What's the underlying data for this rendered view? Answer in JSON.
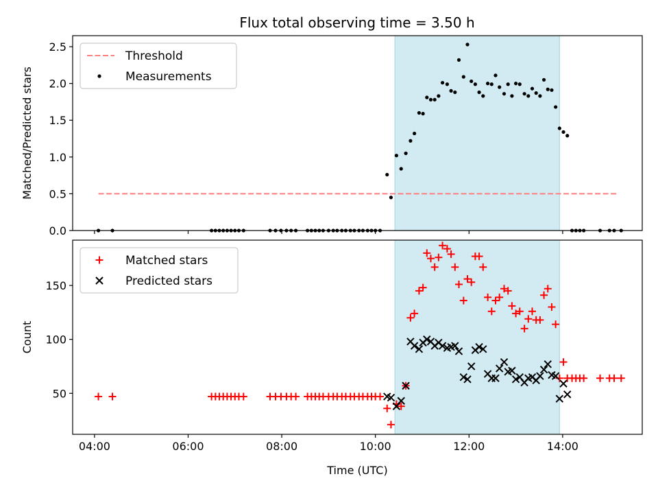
{
  "chart_data": [
    {
      "type": "scatter",
      "title": "Flux total observing time = 3.50 h",
      "xlabel": "",
      "ylabel": "Matched/Predicted stars",
      "xlim": [
        "03:32",
        "15:42"
      ],
      "ylim": [
        0,
        2.65
      ],
      "yticks": [
        "0.0",
        "0.5",
        "1.0",
        "1.5",
        "2.0",
        "2.5"
      ],
      "xticks": [
        "04:00",
        "06:00",
        "08:00",
        "10:00",
        "12:00",
        "14:00"
      ],
      "grid": false,
      "legend": "top-left",
      "shaded_region": {
        "start": "10:25",
        "end": "13:56",
        "color": "#add8e6"
      },
      "series": [
        {
          "name": "Threshold",
          "kind": "line",
          "color": "#ff7f7f",
          "dash": true,
          "points": [
            [
              "04:05",
              0.5
            ],
            [
              "15:10",
              0.5
            ]
          ]
        },
        {
          "name": "Measurements",
          "kind": "scatter",
          "color": "#000000",
          "points": [
            [
              "04:05",
              0.0
            ],
            [
              "04:23",
              0.0
            ],
            [
              "06:30",
              0.0
            ],
            [
              "06:35",
              0.0
            ],
            [
              "06:40",
              0.0
            ],
            [
              "06:45",
              0.0
            ],
            [
              "06:50",
              0.0
            ],
            [
              "06:55",
              0.0
            ],
            [
              "07:00",
              0.0
            ],
            [
              "07:05",
              0.0
            ],
            [
              "07:11",
              0.0
            ],
            [
              "07:45",
              0.0
            ],
            [
              "07:52",
              0.0
            ],
            [
              "07:59",
              0.0
            ],
            [
              "08:06",
              0.0
            ],
            [
              "08:12",
              0.0
            ],
            [
              "08:18",
              0.0
            ],
            [
              "08:33",
              0.0
            ],
            [
              "08:38",
              0.0
            ],
            [
              "08:43",
              0.0
            ],
            [
              "08:48",
              0.0
            ],
            [
              "08:53",
              0.0
            ],
            [
              "09:00",
              0.0
            ],
            [
              "09:06",
              0.0
            ],
            [
              "09:11",
              0.0
            ],
            [
              "09:17",
              0.0
            ],
            [
              "09:22",
              0.0
            ],
            [
              "09:28",
              0.0
            ],
            [
              "09:33",
              0.0
            ],
            [
              "09:39",
              0.0
            ],
            [
              "09:44",
              0.0
            ],
            [
              "09:50",
              0.0
            ],
            [
              "09:55",
              0.0
            ],
            [
              "10:00",
              0.0
            ],
            [
              "10:06",
              0.0
            ],
            [
              "10:15",
              0.76
            ],
            [
              "10:20",
              0.45
            ],
            [
              "10:27",
              1.02
            ],
            [
              "10:33",
              0.84
            ],
            [
              "10:39",
              1.05
            ],
            [
              "10:45",
              1.22
            ],
            [
              "10:50",
              1.32
            ],
            [
              "10:56",
              1.6
            ],
            [
              "11:01",
              1.59
            ],
            [
              "11:06",
              1.81
            ],
            [
              "11:11",
              1.78
            ],
            [
              "11:16",
              1.78
            ],
            [
              "11:21",
              1.83
            ],
            [
              "11:26",
              2.01
            ],
            [
              "11:32",
              1.99
            ],
            [
              "11:37",
              1.9
            ],
            [
              "11:42",
              1.88
            ],
            [
              "11:47",
              2.32
            ],
            [
              "11:53",
              2.09
            ],
            [
              "11:58",
              2.53
            ],
            [
              "12:03",
              2.03
            ],
            [
              "12:08",
              1.99
            ],
            [
              "12:13",
              1.88
            ],
            [
              "12:18",
              1.83
            ],
            [
              "12:24",
              2.0
            ],
            [
              "12:29",
              1.99
            ],
            [
              "12:34",
              2.11
            ],
            [
              "12:39",
              1.95
            ],
            [
              "12:45",
              1.86
            ],
            [
              "12:50",
              1.99
            ],
            [
              "12:55",
              1.83
            ],
            [
              "13:00",
              2.0
            ],
            [
              "13:05",
              1.99
            ],
            [
              "13:11",
              1.86
            ],
            [
              "13:16",
              1.83
            ],
            [
              "13:21",
              1.93
            ],
            [
              "13:26",
              1.87
            ],
            [
              "13:31",
              1.83
            ],
            [
              "13:36",
              2.05
            ],
            [
              "13:41",
              1.92
            ],
            [
              "13:46",
              1.91
            ],
            [
              "13:51",
              1.68
            ],
            [
              "13:56",
              1.39
            ],
            [
              "14:01",
              1.34
            ],
            [
              "14:06",
              1.29
            ],
            [
              "14:12",
              0.0
            ],
            [
              "14:17",
              0.0
            ],
            [
              "14:22",
              0.0
            ],
            [
              "14:27",
              0.0
            ],
            [
              "14:48",
              0.0
            ],
            [
              "15:00",
              0.0
            ],
            [
              "15:06",
              0.0
            ],
            [
              "15:15",
              0.0
            ]
          ]
        }
      ]
    },
    {
      "type": "scatter",
      "title": "",
      "xlabel": "Time (UTC)",
      "ylabel": "Count",
      "xlim": [
        "03:32",
        "15:42"
      ],
      "ylim": [
        12,
        192
      ],
      "yticks": [
        "50",
        "100",
        "150"
      ],
      "xticks": [
        "04:00",
        "06:00",
        "08:00",
        "10:00",
        "12:00",
        "14:00"
      ],
      "grid": false,
      "legend": "top-left",
      "shaded_region": {
        "start": "10:25",
        "end": "13:56",
        "color": "#add8e6"
      },
      "series": [
        {
          "name": "Matched stars",
          "kind": "plus",
          "color": "#ff0000",
          "points": [
            [
              "04:05",
              47
            ],
            [
              "04:23",
              47
            ],
            [
              "06:30",
              47
            ],
            [
              "06:35",
              47
            ],
            [
              "06:40",
              47
            ],
            [
              "06:45",
              47
            ],
            [
              "06:50",
              47
            ],
            [
              "06:55",
              47
            ],
            [
              "07:00",
              47
            ],
            [
              "07:05",
              47
            ],
            [
              "07:11",
              47
            ],
            [
              "07:45",
              47
            ],
            [
              "07:52",
              47
            ],
            [
              "07:59",
              47
            ],
            [
              "08:06",
              47
            ],
            [
              "08:12",
              47
            ],
            [
              "08:18",
              47
            ],
            [
              "08:33",
              47
            ],
            [
              "08:38",
              47
            ],
            [
              "08:43",
              47
            ],
            [
              "08:48",
              47
            ],
            [
              "08:53",
              47
            ],
            [
              "09:00",
              47
            ],
            [
              "09:06",
              47
            ],
            [
              "09:11",
              47
            ],
            [
              "09:17",
              47
            ],
            [
              "09:22",
              47
            ],
            [
              "09:28",
              47
            ],
            [
              "09:33",
              47
            ],
            [
              "09:39",
              47
            ],
            [
              "09:44",
              47
            ],
            [
              "09:50",
              47
            ],
            [
              "09:55",
              47
            ],
            [
              "10:00",
              47
            ],
            [
              "10:06",
              47
            ],
            [
              "10:15",
              36
            ],
            [
              "10:20",
              21
            ],
            [
              "10:27",
              40
            ],
            [
              "10:33",
              38
            ],
            [
              "10:39",
              57
            ],
            [
              "10:45",
              120
            ],
            [
              "10:50",
              124
            ],
            [
              "10:56",
              145
            ],
            [
              "11:01",
              148
            ],
            [
              "11:06",
              180
            ],
            [
              "11:11",
              175
            ],
            [
              "11:16",
              167
            ],
            [
              "11:21",
              176
            ],
            [
              "11:26",
              187
            ],
            [
              "11:32",
              184
            ],
            [
              "11:37",
              179
            ],
            [
              "11:42",
              167
            ],
            [
              "11:47",
              151
            ],
            [
              "11:53",
              136
            ],
            [
              "11:58",
              156
            ],
            [
              "12:03",
              153
            ],
            [
              "12:08",
              177
            ],
            [
              "12:13",
              177
            ],
            [
              "12:18",
              167
            ],
            [
              "12:24",
              139
            ],
            [
              "12:29",
              126
            ],
            [
              "12:34",
              136
            ],
            [
              "12:39",
              139
            ],
            [
              "12:45",
              147
            ],
            [
              "12:50",
              145
            ],
            [
              "12:55",
              131
            ],
            [
              "13:00",
              124
            ],
            [
              "13:05",
              126
            ],
            [
              "13:11",
              110
            ],
            [
              "13:16",
              119
            ],
            [
              "13:21",
              126
            ],
            [
              "13:26",
              118
            ],
            [
              "13:31",
              118
            ],
            [
              "13:36",
              141
            ],
            [
              "13:41",
              147
            ],
            [
              "13:46",
              130
            ],
            [
              "13:51",
              114
            ],
            [
              "13:56",
              64
            ],
            [
              "14:01",
              79
            ],
            [
              "14:06",
              64
            ],
            [
              "14:12",
              64
            ],
            [
              "14:17",
              64
            ],
            [
              "14:22",
              64
            ],
            [
              "14:27",
              64
            ],
            [
              "14:48",
              64
            ],
            [
              "15:00",
              64
            ],
            [
              "15:06",
              64
            ],
            [
              "15:15",
              64
            ]
          ]
        },
        {
          "name": "Predicted stars",
          "kind": "x",
          "color": "#000000",
          "points": [
            [
              "10:15",
              47
            ],
            [
              "10:20",
              46
            ],
            [
              "10:27",
              38
            ],
            [
              "10:33",
              43
            ],
            [
              "10:39",
              57
            ],
            [
              "10:45",
              98
            ],
            [
              "10:50",
              94
            ],
            [
              "10:56",
              91
            ],
            [
              "11:01",
              97
            ],
            [
              "11:06",
              100
            ],
            [
              "11:11",
              98
            ],
            [
              "11:16",
              94
            ],
            [
              "11:21",
              97
            ],
            [
              "11:26",
              94
            ],
            [
              "11:32",
              92
            ],
            [
              "11:37",
              93
            ],
            [
              "11:42",
              94
            ],
            [
              "11:47",
              89
            ],
            [
              "11:53",
              65
            ],
            [
              "11:58",
              63
            ],
            [
              "12:03",
              75
            ],
            [
              "12:08",
              90
            ],
            [
              "12:13",
              93
            ],
            [
              "12:18",
              91
            ],
            [
              "12:24",
              68
            ],
            [
              "12:29",
              64
            ],
            [
              "12:34",
              64
            ],
            [
              "12:39",
              73
            ],
            [
              "12:45",
              79
            ],
            [
              "12:50",
              70
            ],
            [
              "12:55",
              71
            ],
            [
              "13:00",
              63
            ],
            [
              "13:05",
              65
            ],
            [
              "13:11",
              60
            ],
            [
              "13:16",
              64
            ],
            [
              "13:21",
              65
            ],
            [
              "13:26",
              62
            ],
            [
              "13:31",
              66
            ],
            [
              "13:36",
              72
            ],
            [
              "13:41",
              77
            ],
            [
              "13:46",
              67
            ],
            [
              "13:51",
              66
            ],
            [
              "13:56",
              45
            ],
            [
              "14:01",
              59
            ],
            [
              "14:06",
              49
            ]
          ]
        }
      ]
    }
  ]
}
